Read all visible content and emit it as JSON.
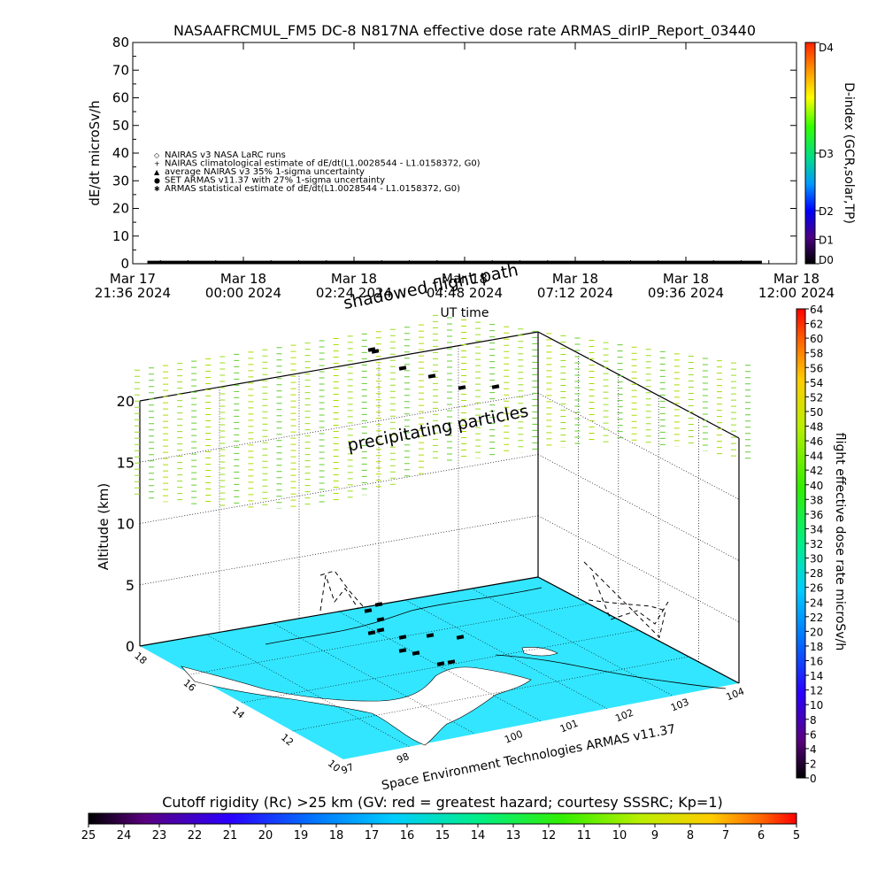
{
  "chart_data": [
    {
      "type": "line",
      "title": "NASAAFRCMUL_FM5 DC-8    N817NA effective dose rate ARMAS_dirIP_Report_03440",
      "ylabel": "dE/dt microSv/h",
      "xlabel": "UT time",
      "ylim": [
        0,
        80
      ],
      "y_ticks": [
        "0",
        "10",
        "20",
        "30",
        "40",
        "50",
        "60",
        "70",
        "80"
      ],
      "x_ticks": [
        {
          "l1": "Mar 17",
          "l2": "21:36 2024"
        },
        {
          "l1": "Mar 18",
          "l2": "00:00 2024"
        },
        {
          "l1": "Mar 18",
          "l2": "02:24 2024"
        },
        {
          "l1": "Mar 18",
          "l2": "04:48 2024"
        },
        {
          "l1": "Mar 18",
          "l2": "07:12 2024"
        },
        {
          "l1": "Mar 18",
          "l2": "09:36 2024"
        },
        {
          "l1": "Mar 18",
          "l2": "12:00 2024"
        }
      ],
      "x_range": [
        "Mar 17 21:36 2024",
        "Mar 18 12:00 2024"
      ],
      "flight_span": [
        "Mar 17 21:55 2024",
        "Mar 18 11:15 2024"
      ],
      "series": [
        {
          "label": "NAIRAS v3 NASA LaRC runs",
          "symbol": "◇"
        },
        {
          "label": "NAIRAS climatological estimate of dE/dt(L1.0028544 - L1.0158372, G0)",
          "symbol": "+"
        },
        {
          "label": "average NAIRAS v3 35% 1-sigma uncertainty",
          "symbol": "▲"
        },
        {
          "label": "SET ARMAS v11.37 with 27% 1-sigma uncertainty",
          "symbol": "●",
          "color": "#0033cc"
        },
        {
          "label": "ARMAS statistical estimate of dE/dt(L1.0028544 - L1.0158372, G0)",
          "symbol": "✱"
        }
      ],
      "dose_rate_values_approx": [
        0.5,
        0.5,
        0.5,
        0.5,
        0.5,
        0.5,
        0.5
      ],
      "right_axis": {
        "label": "D-index (GCR,solar,TP)",
        "ticks": [
          {
            "label": "D4",
            "frac": 1.0
          },
          {
            "label": "D3",
            "frac": 0.5
          },
          {
            "label": "D2",
            "frac": 0.24
          },
          {
            "label": "D1",
            "frac": 0.11
          },
          {
            "label": "D0",
            "frac": 0.0
          }
        ]
      }
    },
    {
      "type": "scatter",
      "subtitle": "shadowed flight path",
      "annotation": "precipitating particles",
      "footer": "Space Environment Technologies ARMAS v11.37",
      "zlabel": "Altitude (km)",
      "zlim": [
        0,
        20
      ],
      "z_ticks": [
        "0",
        "5",
        "10",
        "15",
        "20"
      ],
      "lon_ticks": [
        "97",
        "98",
        "100",
        "101",
        "102",
        "103",
        "104"
      ],
      "lat_ticks": [
        "10",
        "12",
        "14",
        "16",
        "18"
      ],
      "colorbar": {
        "label": "flight effective dose rate microSv/h",
        "min": 0,
        "max": 64,
        "ticks": [
          "0",
          "2",
          "4",
          "6",
          "8",
          "10",
          "12",
          "14",
          "16",
          "18",
          "20",
          "22",
          "24",
          "26",
          "28",
          "30",
          "32",
          "34",
          "36",
          "38",
          "40",
          "42",
          "44",
          "46",
          "48",
          "50",
          "52",
          "54",
          "56",
          "58",
          "60",
          "62",
          "64"
        ]
      },
      "dose_rate_dashes_microSv_h": "approx. 40-44 at 15-22 km altitude",
      "ground_fill_color": "#33e6ff"
    },
    {
      "type": "heatmap",
      "title": "Cutoff rigidity (Rc) >25 km (GV: red = greatest hazard; courtesy SSSRC; Kp=1)",
      "ticks": [
        "25",
        "24",
        "23",
        "22",
        "21",
        "20",
        "19",
        "18",
        "17",
        "16",
        "15",
        "14",
        "13",
        "12",
        "11",
        "10",
        "9",
        "8",
        "7",
        "6",
        "5"
      ]
    }
  ]
}
